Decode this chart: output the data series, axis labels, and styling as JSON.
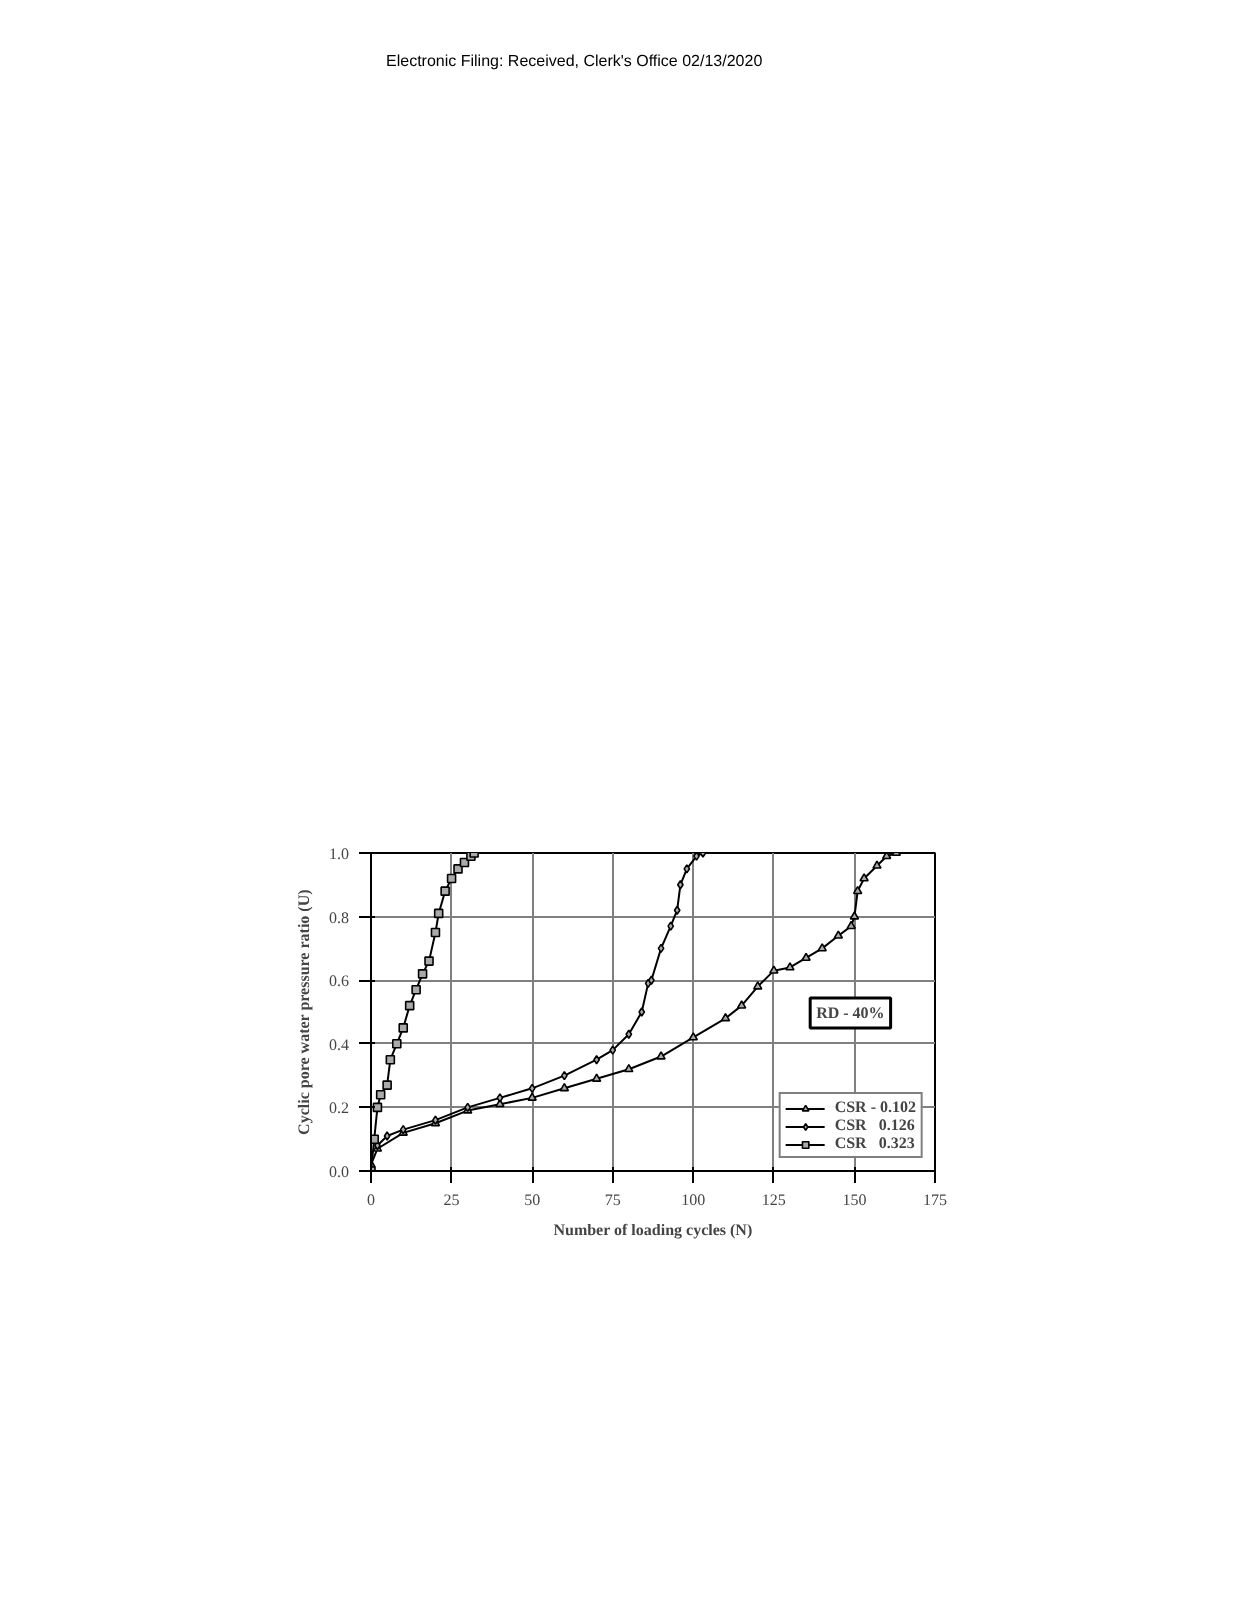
{
  "chart_data": {
    "type": "line",
    "xlabel": "Number of loading cycles (N)",
    "ylabel": "Cyclic pore water pressure ratio (U)",
    "annotations": [
      "Electronic Filing: Received, Clerk's Office 02/13/2020",
      "RD - 40%"
    ],
    "xlim": [
      0,
      175
    ],
    "xticks": [
      0,
      25,
      50,
      75,
      100,
      125,
      150,
      175
    ],
    "ylim": [
      0,
      1
    ],
    "yticks": [
      {
        "value": 0,
        "label": "0.0"
      },
      {
        "value": 0.2,
        "label": "0.2"
      },
      {
        "value": 0.4,
        "label": "0.4"
      },
      {
        "value": 0.6,
        "label": "0.6"
      },
      {
        "value": 0.8,
        "label": "0.8"
      },
      {
        "value": 1,
        "label": "1.0"
      }
    ],
    "grid": true,
    "legend": "bottom right",
    "series": [
      {
        "name": "CSR - 0.102",
        "color": "#000000",
        "marker": "triangle",
        "x": [
          0,
          2,
          10,
          20,
          30,
          40,
          50,
          60,
          70,
          80,
          90,
          100,
          110,
          115,
          120,
          125,
          130,
          135,
          140,
          145,
          149,
          150,
          151,
          153,
          157,
          160,
          163
        ],
        "values": [
          0.02,
          0.07,
          0.12,
          0.15,
          0.19,
          0.21,
          0.23,
          0.26,
          0.29,
          0.32,
          0.36,
          0.42,
          0.48,
          0.52,
          0.58,
          0.63,
          0.64,
          0.67,
          0.7,
          0.74,
          0.77,
          0.8,
          0.88,
          0.92,
          0.96,
          0.99,
          1.0
        ]
      },
      {
        "name": "CSR   0.126",
        "color": "#000000",
        "marker": "diamond",
        "x": [
          2,
          5,
          10,
          20,
          30,
          40,
          50,
          60,
          70,
          75,
          80,
          84,
          86,
          87,
          90,
          93,
          95,
          96,
          98,
          101,
          103
        ],
        "values": [
          0.08,
          0.11,
          0.13,
          0.16,
          0.2,
          0.23,
          0.26,
          0.3,
          0.35,
          0.38,
          0.43,
          0.5,
          0.59,
          0.6,
          0.7,
          0.77,
          0.82,
          0.9,
          0.95,
          0.99,
          1.0
        ]
      },
      {
        "name": "CSR   0.323",
        "color": "#000000",
        "marker": "square",
        "x": [
          0,
          1,
          2,
          3,
          5,
          6,
          8,
          10,
          12,
          14,
          16,
          18,
          20,
          21,
          23,
          25,
          27,
          29,
          31,
          32
        ],
        "values": [
          0,
          0.1,
          0.2,
          0.24,
          0.27,
          0.35,
          0.4,
          0.45,
          0.52,
          0.57,
          0.62,
          0.66,
          0.75,
          0.81,
          0.88,
          0.92,
          0.95,
          0.97,
          0.99,
          1.0
        ]
      }
    ]
  }
}
